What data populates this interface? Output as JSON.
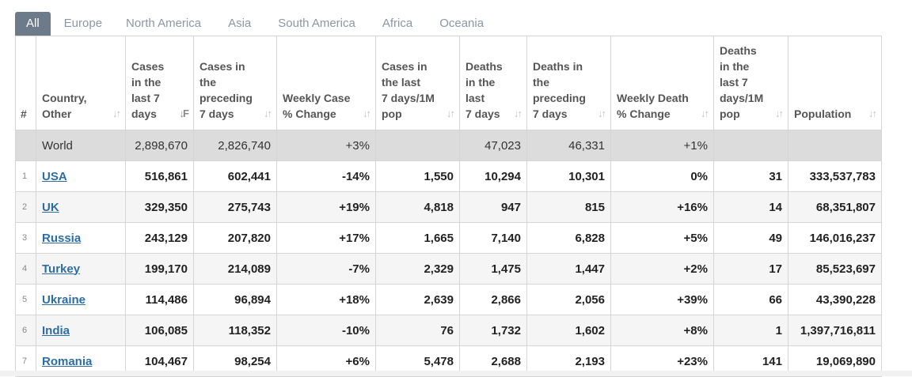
{
  "tabs": [
    "All",
    "Europe",
    "North America",
    "Asia",
    "South America",
    "Africa",
    "Oceania"
  ],
  "headers": {
    "num": "#",
    "country": "Country,\nOther",
    "cases7": "Cases\nin the\nlast 7\ndays",
    "casesPrev": "Cases in\nthe\npreceding\n7 days",
    "weeklyCase": "Weekly Case\n% Change",
    "cases1m": "Cases in\nthe last\n7 days/1M\npop",
    "deaths7": "Deaths\nin the\nlast\n7 days",
    "deathsPrev": "Deaths in\nthe\npreceding\n7 days",
    "weeklyDeath": "Weekly Death\n% Change",
    "deaths1m": "Deaths\nin the\nlast 7\ndays/1M\npop",
    "population": "Population"
  },
  "world": {
    "country": "World",
    "cases7": "2,898,670",
    "casesPrev": "2,826,740",
    "weeklyCase": "+3%",
    "cases1m": "",
    "deaths7": "47,023",
    "deathsPrev": "46,331",
    "weeklyDeath": "+1%",
    "deaths1m": "",
    "population": ""
  },
  "rows": [
    {
      "num": "1",
      "country": "USA",
      "cases7": "516,861",
      "casesPrev": "602,441",
      "weeklyCase": "-14%",
      "cases1m": "1,550",
      "deaths7": "10,294",
      "deathsPrev": "10,301",
      "weeklyDeath": "0%",
      "deaths1m": "31",
      "population": "333,537,783"
    },
    {
      "num": "2",
      "country": "UK",
      "cases7": "329,350",
      "casesPrev": "275,743",
      "weeklyCase": "+19%",
      "cases1m": "4,818",
      "deaths7": "947",
      "deathsPrev": "815",
      "weeklyDeath": "+16%",
      "deaths1m": "14",
      "population": "68,351,807"
    },
    {
      "num": "3",
      "country": "Russia",
      "cases7": "243,129",
      "casesPrev": "207,820",
      "weeklyCase": "+17%",
      "cases1m": "1,665",
      "deaths7": "7,140",
      "deathsPrev": "6,828",
      "weeklyDeath": "+5%",
      "deaths1m": "49",
      "population": "146,016,237"
    },
    {
      "num": "4",
      "country": "Turkey",
      "cases7": "199,170",
      "casesPrev": "214,089",
      "weeklyCase": "-7%",
      "cases1m": "2,329",
      "deaths7": "1,475",
      "deathsPrev": "1,447",
      "weeklyDeath": "+2%",
      "deaths1m": "17",
      "population": "85,523,697"
    },
    {
      "num": "5",
      "country": "Ukraine",
      "cases7": "114,486",
      "casesPrev": "96,894",
      "weeklyCase": "+18%",
      "cases1m": "2,639",
      "deaths7": "2,866",
      "deathsPrev": "2,056",
      "weeklyDeath": "+39%",
      "deaths1m": "66",
      "population": "43,390,228"
    },
    {
      "num": "6",
      "country": "India",
      "cases7": "106,085",
      "casesPrev": "118,352",
      "weeklyCase": "-10%",
      "cases1m": "76",
      "deaths7": "1,732",
      "deathsPrev": "1,602",
      "weeklyDeath": "+8%",
      "deaths1m": "1",
      "population": "1,397,716,811"
    },
    {
      "num": "7",
      "country": "Romania",
      "cases7": "104,467",
      "casesPrev": "98,254",
      "weeklyCase": "+6%",
      "cases1m": "5,478",
      "deaths7": "2,688",
      "deathsPrev": "2,193",
      "weeklyDeath": "+23%",
      "deaths1m": "141",
      "population": "19,069,890"
    }
  ],
  "sort_icon": "sort-arrows-icon",
  "colors": {
    "active_tab": "#6c7a89",
    "link": "#2e6da4",
    "world_row": "#dcdcdc"
  }
}
